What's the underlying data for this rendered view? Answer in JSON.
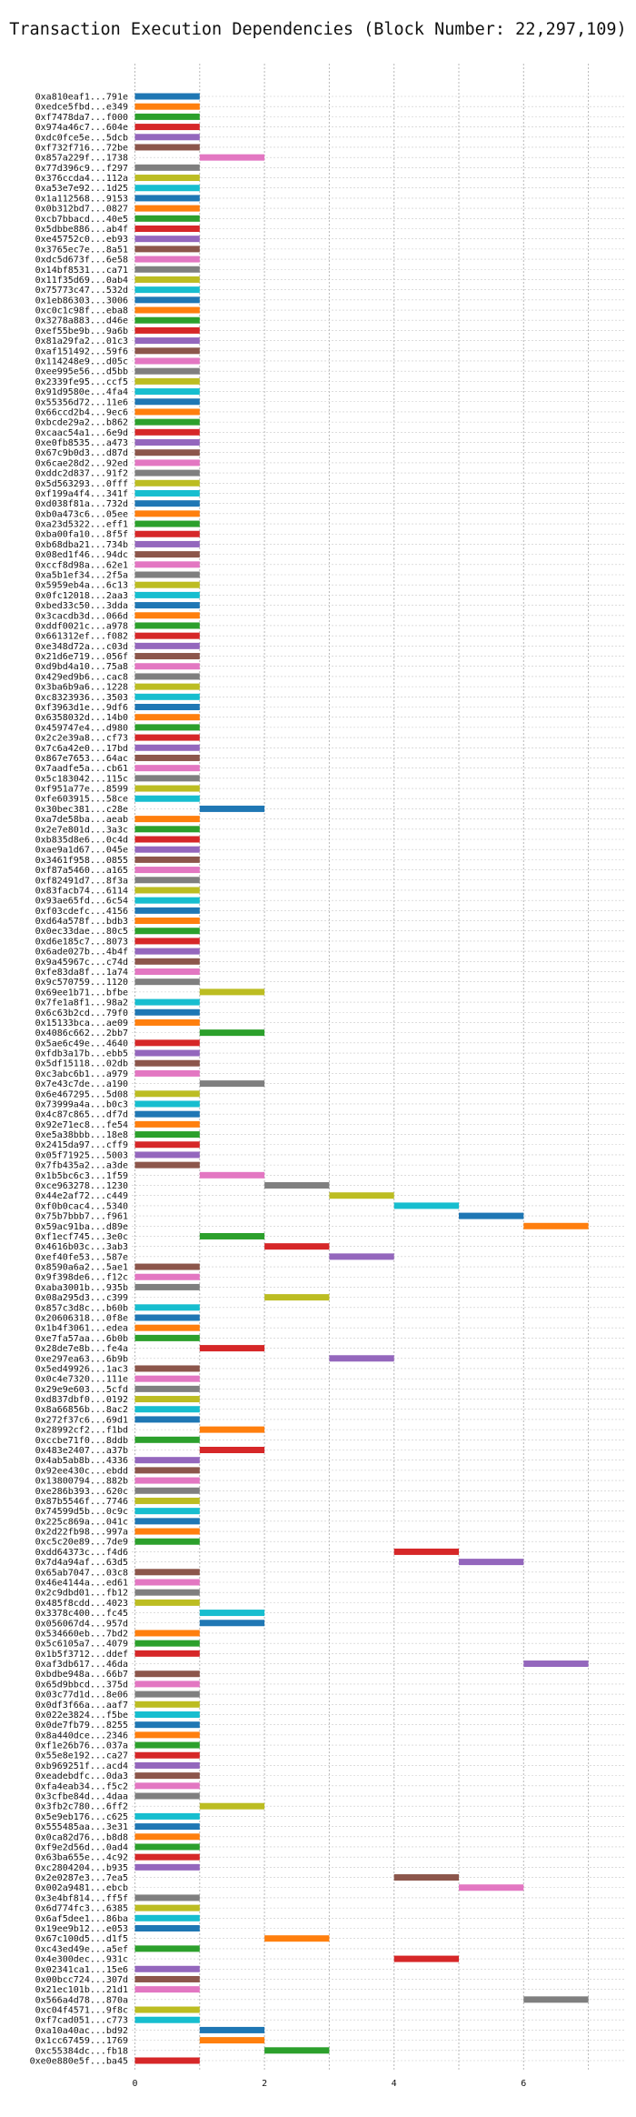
{
  "chart_data": {
    "type": "bar",
    "orientation": "horizontal",
    "title": "Transaction Execution Dependencies (Block Number: 22,297,109)",
    "xlabel": "",
    "ylabel": "",
    "x_ticks": [
      0,
      2,
      4,
      6
    ],
    "xlim": [
      -0.2,
      7.5
    ],
    "grid": true,
    "palette": [
      "#1f77b4",
      "#ff7f0e",
      "#2ca02c",
      "#d62728",
      "#9467bd",
      "#8c564b",
      "#e377c2",
      "#7f7f7f",
      "#bcbd22",
      "#17becf"
    ],
    "transactions": [
      {
        "tx": "0xa810eaf1...791e",
        "start": 0,
        "end": 1
      },
      {
        "tx": "0xedce5fbd...e349",
        "start": 0,
        "end": 1
      },
      {
        "tx": "0xf7478da7...f000",
        "start": 0,
        "end": 1
      },
      {
        "tx": "0x974a46c7...604e",
        "start": 0,
        "end": 1
      },
      {
        "tx": "0xdc0fce5e...5dcb",
        "start": 0,
        "end": 1
      },
      {
        "tx": "0xf732f716...72be",
        "start": 0,
        "end": 1
      },
      {
        "tx": "0x857a229f...1738",
        "start": 1,
        "end": 2
      },
      {
        "tx": "0x77d396c9...f297",
        "start": 0,
        "end": 1
      },
      {
        "tx": "0x376ccda4...112a",
        "start": 0,
        "end": 1
      },
      {
        "tx": "0xa53e7e92...1d25",
        "start": 0,
        "end": 1
      },
      {
        "tx": "0x1a112568...9153",
        "start": 0,
        "end": 1
      },
      {
        "tx": "0x0b312bd7...0827",
        "start": 0,
        "end": 1
      },
      {
        "tx": "0xcb7bbacd...40e5",
        "start": 0,
        "end": 1
      },
      {
        "tx": "0x5dbbe886...ab4f",
        "start": 0,
        "end": 1
      },
      {
        "tx": "0xe45752c0...eb93",
        "start": 0,
        "end": 1
      },
      {
        "tx": "0x3765ec7e...8a51",
        "start": 0,
        "end": 1
      },
      {
        "tx": "0xdc5d673f...6e58",
        "start": 0,
        "end": 1
      },
      {
        "tx": "0x14bf8531...ca71",
        "start": 0,
        "end": 1
      },
      {
        "tx": "0x11f35d69...0ab4",
        "start": 0,
        "end": 1
      },
      {
        "tx": "0x75773c47...532d",
        "start": 0,
        "end": 1
      },
      {
        "tx": "0x1eb86303...3006",
        "start": 0,
        "end": 1
      },
      {
        "tx": "0xc0c1c98f...eba8",
        "start": 0,
        "end": 1
      },
      {
        "tx": "0x3278a883...d46e",
        "start": 0,
        "end": 1
      },
      {
        "tx": "0xef55be9b...9a6b",
        "start": 0,
        "end": 1
      },
      {
        "tx": "0x81a29fa2...01c3",
        "start": 0,
        "end": 1
      },
      {
        "tx": "0xaf151492...59f6",
        "start": 0,
        "end": 1
      },
      {
        "tx": "0x114248e9...d05c",
        "start": 0,
        "end": 1
      },
      {
        "tx": "0xee995e56...d5bb",
        "start": 0,
        "end": 1
      },
      {
        "tx": "0x2339fe95...ccf5",
        "start": 0,
        "end": 1
      },
      {
        "tx": "0x91d9580e...4fa4",
        "start": 0,
        "end": 1
      },
      {
        "tx": "0x55356d72...11e6",
        "start": 0,
        "end": 1
      },
      {
        "tx": "0x66ccd2b4...9ec6",
        "start": 0,
        "end": 1
      },
      {
        "tx": "0xbcde29a2...b862",
        "start": 0,
        "end": 1
      },
      {
        "tx": "0xcaac54a1...6e9d",
        "start": 0,
        "end": 1
      },
      {
        "tx": "0xe0fb8535...a473",
        "start": 0,
        "end": 1
      },
      {
        "tx": "0x67c9b0d3...d87d",
        "start": 0,
        "end": 1
      },
      {
        "tx": "0x6cae28d2...92ed",
        "start": 0,
        "end": 1
      },
      {
        "tx": "0xddc2d837...91f2",
        "start": 0,
        "end": 1
      },
      {
        "tx": "0x5d563293...0fff",
        "start": 0,
        "end": 1
      },
      {
        "tx": "0xf199a4f4...341f",
        "start": 0,
        "end": 1
      },
      {
        "tx": "0xd038f81a...732d",
        "start": 0,
        "end": 1
      },
      {
        "tx": "0xb0a473c6...05ee",
        "start": 0,
        "end": 1
      },
      {
        "tx": "0xa23d5322...eff1",
        "start": 0,
        "end": 1
      },
      {
        "tx": "0xba00fa10...8f5f",
        "start": 0,
        "end": 1
      },
      {
        "tx": "0xb68dba21...734b",
        "start": 0,
        "end": 1
      },
      {
        "tx": "0x08ed1f46...94dc",
        "start": 0,
        "end": 1
      },
      {
        "tx": "0xccf8d98a...62e1",
        "start": 0,
        "end": 1
      },
      {
        "tx": "0xa5b1ef34...2f5a",
        "start": 0,
        "end": 1
      },
      {
        "tx": "0x5959eb4a...6c13",
        "start": 0,
        "end": 1
      },
      {
        "tx": "0x0fc12018...2aa3",
        "start": 0,
        "end": 1
      },
      {
        "tx": "0xbed33c50...3dda",
        "start": 0,
        "end": 1
      },
      {
        "tx": "0x3cacdb3d...066d",
        "start": 0,
        "end": 1
      },
      {
        "tx": "0xddf0021c...a978",
        "start": 0,
        "end": 1
      },
      {
        "tx": "0x661312ef...f082",
        "start": 0,
        "end": 1
      },
      {
        "tx": "0xe348d72a...c03d",
        "start": 0,
        "end": 1
      },
      {
        "tx": "0x21d6e719...056f",
        "start": 0,
        "end": 1
      },
      {
        "tx": "0xd9bd4a10...75a8",
        "start": 0,
        "end": 1
      },
      {
        "tx": "0x429ed9b6...cac8",
        "start": 0,
        "end": 1
      },
      {
        "tx": "0x3ba6b9a6...1228",
        "start": 0,
        "end": 1
      },
      {
        "tx": "0xc8323936...3503",
        "start": 0,
        "end": 1
      },
      {
        "tx": "0xf3963d1e...9df6",
        "start": 0,
        "end": 1
      },
      {
        "tx": "0x6358032d...14b0",
        "start": 0,
        "end": 1
      },
      {
        "tx": "0x459747e4...d980",
        "start": 0,
        "end": 1
      },
      {
        "tx": "0x2c2e39a8...cf73",
        "start": 0,
        "end": 1
      },
      {
        "tx": "0x7c6a42e0...17bd",
        "start": 0,
        "end": 1
      },
      {
        "tx": "0x867e7653...64ac",
        "start": 0,
        "end": 1
      },
      {
        "tx": "0x7aadfe5a...cb61",
        "start": 0,
        "end": 1
      },
      {
        "tx": "0x5c183042...115c",
        "start": 0,
        "end": 1
      },
      {
        "tx": "0xf951a77e...8599",
        "start": 0,
        "end": 1
      },
      {
        "tx": "0xfe603915...58ce",
        "start": 0,
        "end": 1
      },
      {
        "tx": "0x30bec381...c28e",
        "start": 1,
        "end": 2
      },
      {
        "tx": "0xa7de58ba...aeab",
        "start": 0,
        "end": 1
      },
      {
        "tx": "0x2e7e801d...3a3c",
        "start": 0,
        "end": 1
      },
      {
        "tx": "0xb835d8e6...0c4d",
        "start": 0,
        "end": 1
      },
      {
        "tx": "0xae9a1d67...045e",
        "start": 0,
        "end": 1
      },
      {
        "tx": "0x3461f958...0855",
        "start": 0,
        "end": 1
      },
      {
        "tx": "0xf87a5460...a165",
        "start": 0,
        "end": 1
      },
      {
        "tx": "0xf82491d7...8f3a",
        "start": 0,
        "end": 1
      },
      {
        "tx": "0x83facb74...6114",
        "start": 0,
        "end": 1
      },
      {
        "tx": "0x93ae65fd...6c54",
        "start": 0,
        "end": 1
      },
      {
        "tx": "0xf03cdefc...4156",
        "start": 0,
        "end": 1
      },
      {
        "tx": "0xd64a578f...bdb3",
        "start": 0,
        "end": 1
      },
      {
        "tx": "0x0ec33dae...80c5",
        "start": 0,
        "end": 1
      },
      {
        "tx": "0xd6e185c7...8073",
        "start": 0,
        "end": 1
      },
      {
        "tx": "0x6ade027b...4b4f",
        "start": 0,
        "end": 1
      },
      {
        "tx": "0x9a45967c...c74d",
        "start": 0,
        "end": 1
      },
      {
        "tx": "0xfe83da8f...1a74",
        "start": 0,
        "end": 1
      },
      {
        "tx": "0x9c570759...1120",
        "start": 0,
        "end": 1
      },
      {
        "tx": "0x69ee1b71...bfbe",
        "start": 1,
        "end": 2
      },
      {
        "tx": "0x7fe1a8f1...98a2",
        "start": 0,
        "end": 1
      },
      {
        "tx": "0x6c63b2cd...79f0",
        "start": 0,
        "end": 1
      },
      {
        "tx": "0x15133bca...ae09",
        "start": 0,
        "end": 1
      },
      {
        "tx": "0x4086c662...2bb7",
        "start": 1,
        "end": 2
      },
      {
        "tx": "0x5ae6c49e...4640",
        "start": 0,
        "end": 1
      },
      {
        "tx": "0xfdb3a17b...ebb5",
        "start": 0,
        "end": 1
      },
      {
        "tx": "0x5df15118...02db",
        "start": 0,
        "end": 1
      },
      {
        "tx": "0xc3abc6b1...a979",
        "start": 0,
        "end": 1
      },
      {
        "tx": "0x7e43c7de...a190",
        "start": 1,
        "end": 2
      },
      {
        "tx": "0x6e467295...5d08",
        "start": 0,
        "end": 1
      },
      {
        "tx": "0x73999a4a...b0c3",
        "start": 0,
        "end": 1
      },
      {
        "tx": "0x4c87c865...df7d",
        "start": 0,
        "end": 1
      },
      {
        "tx": "0x92e71ec8...fe54",
        "start": 0,
        "end": 1
      },
      {
        "tx": "0xe5a38bbb...18e8",
        "start": 0,
        "end": 1
      },
      {
        "tx": "0x2415da97...cff9",
        "start": 0,
        "end": 1
      },
      {
        "tx": "0x05f71925...5003",
        "start": 0,
        "end": 1
      },
      {
        "tx": "0x7fb435a2...a3de",
        "start": 0,
        "end": 1
      },
      {
        "tx": "0x1b5bc6c3...1f59",
        "start": 1,
        "end": 2
      },
      {
        "tx": "0xce963278...1230",
        "start": 2,
        "end": 3
      },
      {
        "tx": "0x44e2af72...c449",
        "start": 3,
        "end": 4
      },
      {
        "tx": "0xf0b0cac4...5340",
        "start": 4,
        "end": 5
      },
      {
        "tx": "0x75b7bbb7...f961",
        "start": 5,
        "end": 6
      },
      {
        "tx": "0x59ac91ba...d89e",
        "start": 6,
        "end": 7
      },
      {
        "tx": "0xf1ecf745...3e0c",
        "start": 1,
        "end": 2
      },
      {
        "tx": "0x4616b03c...3ab3",
        "start": 2,
        "end": 3
      },
      {
        "tx": "0xef40fe53...587e",
        "start": 3,
        "end": 4
      },
      {
        "tx": "0x8590a6a2...5ae1",
        "start": 0,
        "end": 1
      },
      {
        "tx": "0x9f398de6...f12c",
        "start": 0,
        "end": 1
      },
      {
        "tx": "0xaba3001b...935b",
        "start": 0,
        "end": 1
      },
      {
        "tx": "0x08a295d3...c399",
        "start": 2,
        "end": 3
      },
      {
        "tx": "0x857c3d8c...b60b",
        "start": 0,
        "end": 1
      },
      {
        "tx": "0x20606318...0f8e",
        "start": 0,
        "end": 1
      },
      {
        "tx": "0x1b4f3061...edea",
        "start": 0,
        "end": 1
      },
      {
        "tx": "0xe7fa57aa...6b0b",
        "start": 0,
        "end": 1
      },
      {
        "tx": "0x28de7e8b...fe4a",
        "start": 1,
        "end": 2
      },
      {
        "tx": "0xe297ea63...6b9b",
        "start": 3,
        "end": 4
      },
      {
        "tx": "0x5ed49926...1ac3",
        "start": 0,
        "end": 1
      },
      {
        "tx": "0x0c4e7320...111e",
        "start": 0,
        "end": 1
      },
      {
        "tx": "0x29e9e603...5cfd",
        "start": 0,
        "end": 1
      },
      {
        "tx": "0xd837dbf0...0192",
        "start": 0,
        "end": 1
      },
      {
        "tx": "0x8a66856b...8ac2",
        "start": 0,
        "end": 1
      },
      {
        "tx": "0x272f37c6...69d1",
        "start": 0,
        "end": 1
      },
      {
        "tx": "0x28992cf2...f1bd",
        "start": 1,
        "end": 2
      },
      {
        "tx": "0xccbe71f0...8ddb",
        "start": 0,
        "end": 1
      },
      {
        "tx": "0x483e2407...a37b",
        "start": 1,
        "end": 2
      },
      {
        "tx": "0x4ab5ab8b...4336",
        "start": 0,
        "end": 1
      },
      {
        "tx": "0x92ee430c...ebdd",
        "start": 0,
        "end": 1
      },
      {
        "tx": "0x13800794...882b",
        "start": 0,
        "end": 1
      },
      {
        "tx": "0xe286b393...620c",
        "start": 0,
        "end": 1
      },
      {
        "tx": "0x87b5546f...7746",
        "start": 0,
        "end": 1
      },
      {
        "tx": "0x74599d5b...0c9c",
        "start": 0,
        "end": 1
      },
      {
        "tx": "0x225c869a...041c",
        "start": 0,
        "end": 1
      },
      {
        "tx": "0x2d22fb98...997a",
        "start": 0,
        "end": 1
      },
      {
        "tx": "0xc5c20e89...7de9",
        "start": 0,
        "end": 1
      },
      {
        "tx": "0xdd64373c...f4d6",
        "start": 4,
        "end": 5
      },
      {
        "tx": "0x7d4a94af...63d5",
        "start": 5,
        "end": 6
      },
      {
        "tx": "0x65ab7047...03c8",
        "start": 0,
        "end": 1
      },
      {
        "tx": "0x46e4144a...ed61",
        "start": 0,
        "end": 1
      },
      {
        "tx": "0x2c9dbd01...fb12",
        "start": 0,
        "end": 1
      },
      {
        "tx": "0x485f8cdd...4023",
        "start": 0,
        "end": 1
      },
      {
        "tx": "0x3378c400...fc45",
        "start": 1,
        "end": 2
      },
      {
        "tx": "0x056067d4...957d",
        "start": 1,
        "end": 2
      },
      {
        "tx": "0x534660eb...7bd2",
        "start": 0,
        "end": 1
      },
      {
        "tx": "0x5c6105a7...4079",
        "start": 0,
        "end": 1
      },
      {
        "tx": "0x1b5f3712...ddef",
        "start": 0,
        "end": 1
      },
      {
        "tx": "0xaf3db617...46da",
        "start": 6,
        "end": 7
      },
      {
        "tx": "0xbdbe948a...66b7",
        "start": 0,
        "end": 1
      },
      {
        "tx": "0x65d9bbcd...375d",
        "start": 0,
        "end": 1
      },
      {
        "tx": "0x03c77d1d...8e06",
        "start": 0,
        "end": 1
      },
      {
        "tx": "0x0df3f66a...aaf7",
        "start": 0,
        "end": 1
      },
      {
        "tx": "0x022e3824...f5be",
        "start": 0,
        "end": 1
      },
      {
        "tx": "0x0de7fb79...8255",
        "start": 0,
        "end": 1
      },
      {
        "tx": "0x8a440dce...2346",
        "start": 0,
        "end": 1
      },
      {
        "tx": "0xf1e26b76...037a",
        "start": 0,
        "end": 1
      },
      {
        "tx": "0x55e8e192...ca27",
        "start": 0,
        "end": 1
      },
      {
        "tx": "0xb969251f...acd4",
        "start": 0,
        "end": 1
      },
      {
        "tx": "0xeadebdfc...0da3",
        "start": 0,
        "end": 1
      },
      {
        "tx": "0xfa4eab34...f5c2",
        "start": 0,
        "end": 1
      },
      {
        "tx": "0x3cfbe84d...4daa",
        "start": 0,
        "end": 1
      },
      {
        "tx": "0x3fb2c780...6ff2",
        "start": 1,
        "end": 2
      },
      {
        "tx": "0x5e9eb176...c625",
        "start": 0,
        "end": 1
      },
      {
        "tx": "0x555485aa...3e31",
        "start": 0,
        "end": 1
      },
      {
        "tx": "0x0ca82d76...b8d8",
        "start": 0,
        "end": 1
      },
      {
        "tx": "0xf9e2d56d...0ad4",
        "start": 0,
        "end": 1
      },
      {
        "tx": "0x63ba655e...4c92",
        "start": 0,
        "end": 1
      },
      {
        "tx": "0xc2804204...b935",
        "start": 0,
        "end": 1
      },
      {
        "tx": "0x2e0287e3...7ea5",
        "start": 4,
        "end": 5
      },
      {
        "tx": "0x002a9481...ebcb",
        "start": 5,
        "end": 6
      },
      {
        "tx": "0x3e4bf814...ff5f",
        "start": 0,
        "end": 1
      },
      {
        "tx": "0x6d774fc3...6385",
        "start": 0,
        "end": 1
      },
      {
        "tx": "0x6af5dee1...86ba",
        "start": 0,
        "end": 1
      },
      {
        "tx": "0x19ee9b12...e053",
        "start": 0,
        "end": 1
      },
      {
        "tx": "0x67c100d5...d1f5",
        "start": 2,
        "end": 3
      },
      {
        "tx": "0xc43ed49e...a5ef",
        "start": 0,
        "end": 1
      },
      {
        "tx": "0x4e300dec...931c",
        "start": 4,
        "end": 5
      },
      {
        "tx": "0x02341ca1...15e6",
        "start": 0,
        "end": 1
      },
      {
        "tx": "0x00bcc724...307d",
        "start": 0,
        "end": 1
      },
      {
        "tx": "0x21ec101b...21d1",
        "start": 0,
        "end": 1
      },
      {
        "tx": "0x566a4d78...870a",
        "start": 6,
        "end": 7
      },
      {
        "tx": "0xc04f4571...9f8c",
        "start": 0,
        "end": 1
      },
      {
        "tx": "0xf7cad051...c773",
        "start": 0,
        "end": 1
      },
      {
        "tx": "0xa10a40ac...bd92",
        "start": 1,
        "end": 2
      },
      {
        "tx": "0x1cc67459...1769",
        "start": 1,
        "end": 2
      },
      {
        "tx": "0xc55384dc...fb18",
        "start": 2,
        "end": 3
      },
      {
        "tx": "0xe0e880e5f...ba45",
        "start": 0,
        "end": 1
      }
    ]
  }
}
